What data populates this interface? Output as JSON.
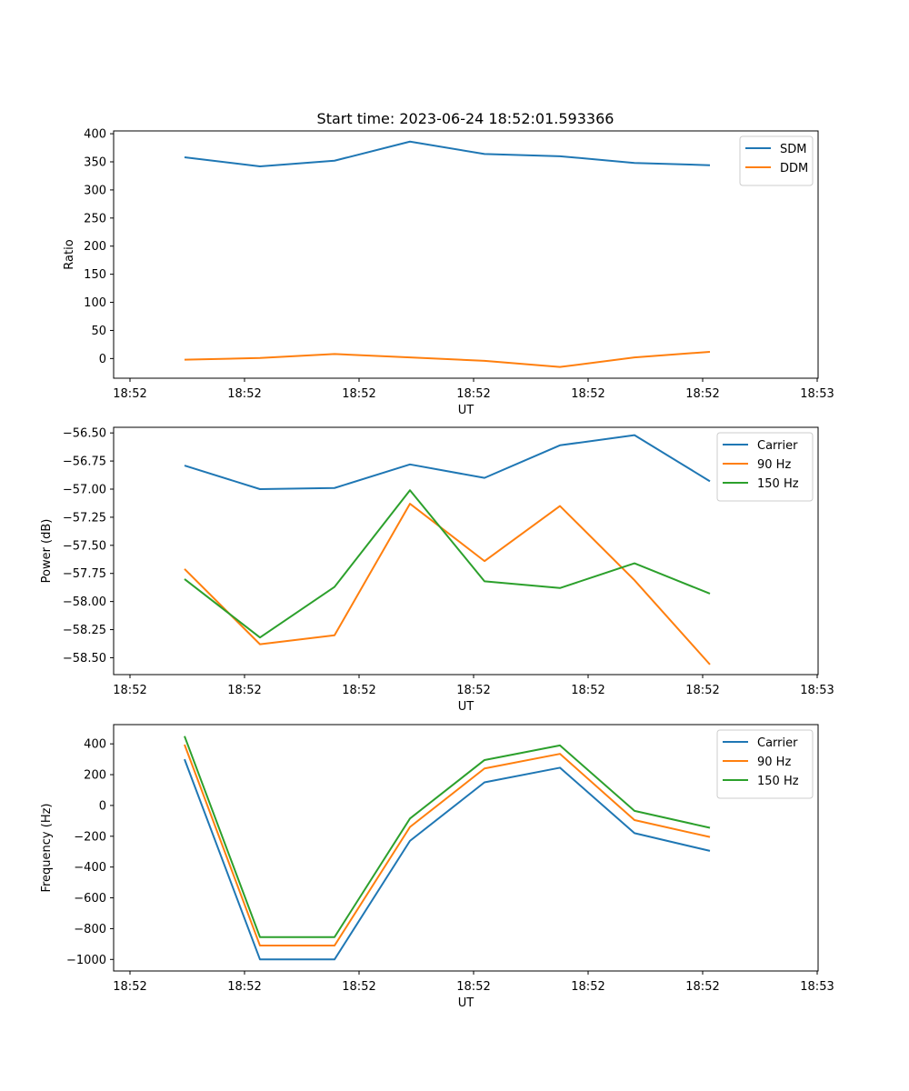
{
  "title": "Start time: 2023-06-24 18:52:01.593366",
  "colors": {
    "blue": "#1f77b4",
    "orange": "#ff7f0e",
    "green": "#2ca02c"
  },
  "chart_data": [
    {
      "type": "line",
      "xlabel": "UT",
      "ylabel": "Ratio",
      "x_ticks": [
        "18:52",
        "18:52",
        "18:52",
        "18:52",
        "18:52",
        "18:52",
        "18:53"
      ],
      "y_ticks": [
        0,
        50,
        100,
        150,
        200,
        250,
        300,
        350,
        400
      ],
      "ylim": [
        -35,
        405
      ],
      "legend_location": "upper right",
      "series": [
        {
          "name": "SDM",
          "color": "#1f77b4",
          "values": [
            358,
            342,
            352,
            386,
            364,
            360,
            348,
            344
          ]
        },
        {
          "name": "DDM",
          "color": "#ff7f0e",
          "values": [
            -2,
            1,
            8,
            2,
            -4,
            -15,
            2,
            12
          ]
        }
      ]
    },
    {
      "type": "line",
      "xlabel": "UT",
      "ylabel": "Power (dB)",
      "x_ticks": [
        "18:52",
        "18:52",
        "18:52",
        "18:52",
        "18:52",
        "18:52",
        "18:53"
      ],
      "y_ticks": [
        -56.5,
        -56.75,
        -57.0,
        -57.25,
        -57.5,
        -57.75,
        -58.0,
        -58.25,
        -58.5
      ],
      "y_tick_labels": [
        "−56.50",
        "−56.75",
        "−57.00",
        "−57.25",
        "−57.50",
        "−57.75",
        "−58.00",
        "−58.25",
        "−58.50"
      ],
      "ylim": [
        -58.65,
        -56.45
      ],
      "legend_location": "upper right",
      "series": [
        {
          "name": "Carrier",
          "color": "#1f77b4",
          "values": [
            -56.79,
            -57.0,
            -56.99,
            -56.78,
            -56.9,
            -56.61,
            -56.52,
            -56.93
          ]
        },
        {
          "name": "90 Hz",
          "color": "#ff7f0e",
          "values": [
            -57.71,
            -58.38,
            -58.3,
            -57.13,
            -57.64,
            -57.15,
            -57.81,
            -58.56
          ]
        },
        {
          "name": "150 Hz",
          "color": "#2ca02c",
          "values": [
            -57.8,
            -58.32,
            -57.87,
            -57.01,
            -57.82,
            -57.88,
            -57.66,
            -57.93
          ]
        }
      ]
    },
    {
      "type": "line",
      "xlabel": "UT",
      "ylabel": "Frequency (Hz)",
      "x_ticks": [
        "18:52",
        "18:52",
        "18:52",
        "18:52",
        "18:52",
        "18:52",
        "18:53"
      ],
      "y_ticks": [
        400,
        200,
        0,
        -200,
        -400,
        -600,
        -800,
        -1000
      ],
      "y_tick_labels": [
        "400",
        "200",
        "0",
        "−200",
        "−400",
        "−600",
        "−800",
        "−1000"
      ],
      "ylim": [
        -1075,
        525
      ],
      "legend_location": "upper right",
      "series": [
        {
          "name": "Carrier",
          "color": "#1f77b4",
          "values": [
            300,
            -1000,
            -1000,
            -230,
            150,
            245,
            -180,
            -295
          ]
        },
        {
          "name": "90 Hz",
          "color": "#ff7f0e",
          "values": [
            395,
            -910,
            -910,
            -140,
            240,
            335,
            -95,
            -205
          ]
        },
        {
          "name": "150 Hz",
          "color": "#2ca02c",
          "values": [
            450,
            -855,
            -855,
            -85,
            295,
            390,
            -35,
            -145
          ]
        }
      ]
    }
  ]
}
